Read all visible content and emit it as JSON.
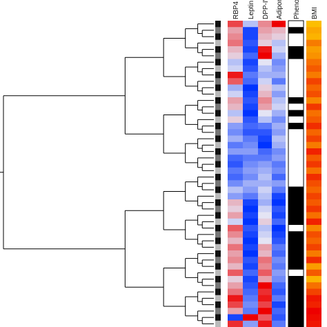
{
  "chart_data": {
    "type": "heatmap",
    "title": "",
    "columns": [
      "RBP4",
      "Leptin",
      "DPP-IV",
      "Adipon",
      "Phenot",
      "BMI"
    ],
    "dendrogram": "hierarchical clustering tree of samples (rows), drawn on the left",
    "row_count": 48,
    "heatmap_colors": {
      "low": "#0033ff",
      "mid": "#e4e4f4",
      "high": "#ee0000"
    },
    "phenotype_colors": {
      "0": "#ffffff",
      "1": "#000000"
    },
    "bmi_colors": {
      "low": "#ffe000",
      "high": "#ee0000"
    },
    "marker_colors": [
      "#111111",
      "#777777",
      "#bbbbbb"
    ],
    "rows": [
      {
        "RBP4": 0.7,
        "Leptin": -0.2,
        "DPP-IV": 0.4,
        "Adipon": 1.0,
        "Phenot": 0,
        "BMI": 0.15,
        "marker": 0
      },
      {
        "RBP4": 0.3,
        "Leptin": -0.9,
        "DPP-IV": 0.3,
        "Adipon": 0.2,
        "Phenot": 1,
        "BMI": 0.25,
        "marker": 1
      },
      {
        "RBP4": 0.4,
        "Leptin": -0.9,
        "DPP-IV": 0.2,
        "Adipon": 0.1,
        "Phenot": 0,
        "BMI": 0.2,
        "marker": 0
      },
      {
        "RBP4": 0.5,
        "Leptin": -0.8,
        "DPP-IV": 0.1,
        "Adipon": -0.2,
        "Phenot": 0,
        "BMI": 0.45,
        "marker": 2
      },
      {
        "RBP4": 0.2,
        "Leptin": -0.9,
        "DPP-IV": 0.9,
        "Adipon": -0.1,
        "Phenot": 1,
        "BMI": 0.3,
        "marker": 0
      },
      {
        "RBP4": 0.1,
        "Leptin": -0.7,
        "DPP-IV": 1.0,
        "Adipon": -0.3,
        "Phenot": 1,
        "BMI": 0.35,
        "marker": 1
      },
      {
        "RBP4": -0.2,
        "Leptin": -0.9,
        "DPP-IV": 0.0,
        "Adipon": -0.5,
        "Phenot": 0,
        "BMI": 0.5,
        "marker": 0
      },
      {
        "RBP4": -0.1,
        "Leptin": -0.8,
        "DPP-IV": -0.2,
        "Adipon": -0.4,
        "Phenot": 0,
        "BMI": 0.6,
        "marker": 2
      },
      {
        "RBP4": 0.9,
        "Leptin": -0.6,
        "DPP-IV": -0.3,
        "Adipon": -0.3,
        "Phenot": 0,
        "BMI": 0.45,
        "marker": 0
      },
      {
        "RBP4": 0.6,
        "Leptin": -0.7,
        "DPP-IV": -0.1,
        "Adipon": -0.6,
        "Phenot": 0,
        "BMI": 0.7,
        "marker": 1
      },
      {
        "RBP4": -0.3,
        "Leptin": -1.0,
        "DPP-IV": 0.1,
        "Adipon": -0.2,
        "Phenot": 0,
        "BMI": 0.55,
        "marker": 0
      },
      {
        "RBP4": -0.1,
        "Leptin": -0.9,
        "DPP-IV": 0.2,
        "Adipon": -0.4,
        "Phenot": 0,
        "BMI": 0.65,
        "marker": 2
      },
      {
        "RBP4": 0.3,
        "Leptin": -0.8,
        "DPP-IV": 0.4,
        "Adipon": -0.2,
        "Phenot": 1,
        "BMI": 0.4,
        "marker": 0
      },
      {
        "RBP4": 0.2,
        "Leptin": -0.9,
        "DPP-IV": 0.3,
        "Adipon": -0.1,
        "Phenot": 0,
        "BMI": 0.75,
        "marker": 1
      },
      {
        "RBP4": -0.2,
        "Leptin": -1.0,
        "DPP-IV": 0.0,
        "Adipon": -0.3,
        "Phenot": 1,
        "BMI": 0.5,
        "marker": 0
      },
      {
        "RBP4": 0.1,
        "Leptin": -0.8,
        "DPP-IV": -0.2,
        "Adipon": -0.5,
        "Phenot": 0,
        "BMI": 0.6,
        "marker": 2
      },
      {
        "RBP4": -0.4,
        "Leptin": -0.7,
        "DPP-IV": -0.6,
        "Adipon": -0.3,
        "Phenot": 1,
        "BMI": 0.8,
        "marker": 0
      },
      {
        "RBP4": -0.5,
        "Leptin": -0.8,
        "DPP-IV": -0.8,
        "Adipon": -0.4,
        "Phenot": 0,
        "BMI": 0.55,
        "marker": 1
      },
      {
        "RBP4": -0.3,
        "Leptin": -0.6,
        "DPP-IV": -0.9,
        "Adipon": -0.2,
        "Phenot": 0,
        "BMI": 0.7,
        "marker": 0
      },
      {
        "RBP4": -0.6,
        "Leptin": -0.5,
        "DPP-IV": -1.0,
        "Adipon": -0.3,
        "Phenot": 0,
        "BMI": 0.45,
        "marker": 2
      },
      {
        "RBP4": -0.4,
        "Leptin": -0.4,
        "DPP-IV": -0.7,
        "Adipon": -0.5,
        "Phenot": 0,
        "BMI": 0.85,
        "marker": 0
      },
      {
        "RBP4": -0.7,
        "Leptin": -0.6,
        "DPP-IV": -0.6,
        "Adipon": -0.4,
        "Phenot": 0,
        "BMI": 0.6,
        "marker": 1
      },
      {
        "RBP4": -0.8,
        "Leptin": -0.5,
        "DPP-IV": -0.4,
        "Adipon": -0.6,
        "Phenot": 0,
        "BMI": 0.75,
        "marker": 0
      },
      {
        "RBP4": -0.6,
        "Leptin": -0.4,
        "DPP-IV": -0.3,
        "Adipon": -0.5,
        "Phenot": 0,
        "BMI": 0.5,
        "marker": 2
      },
      {
        "RBP4": -0.7,
        "Leptin": -0.5,
        "DPP-IV": -0.2,
        "Adipon": -0.7,
        "Phenot": 0,
        "BMI": 0.8,
        "marker": 0
      },
      {
        "RBP4": -0.5,
        "Leptin": -0.3,
        "DPP-IV": -0.3,
        "Adipon": -0.4,
        "Phenot": 0,
        "BMI": 0.65,
        "marker": 1
      },
      {
        "RBP4": -0.2,
        "Leptin": -0.4,
        "DPP-IV": -0.1,
        "Adipon": -0.6,
        "Phenot": 1,
        "BMI": 0.55,
        "marker": 0
      },
      {
        "RBP4": -0.4,
        "Leptin": -0.6,
        "DPP-IV": -0.2,
        "Adipon": -0.9,
        "Phenot": 1,
        "BMI": 0.7,
        "marker": 2
      },
      {
        "RBP4": 0.2,
        "Leptin": -0.9,
        "DPP-IV": -0.3,
        "Adipon": -1.0,
        "Phenot": 1,
        "BMI": 0.6,
        "marker": 0
      },
      {
        "RBP4": 0.1,
        "Leptin": -1.0,
        "DPP-IV": -0.1,
        "Adipon": -0.8,
        "Phenot": 1,
        "BMI": 0.75,
        "marker": 1
      },
      {
        "RBP4": 0.3,
        "Leptin": -0.9,
        "DPP-IV": 0.0,
        "Adipon": -0.9,
        "Phenot": 1,
        "BMI": 0.5,
        "marker": 0
      },
      {
        "RBP4": -0.1,
        "Leptin": -1.0,
        "DPP-IV": 0.1,
        "Adipon": -0.7,
        "Phenot": 1,
        "BMI": 0.85,
        "marker": 2
      },
      {
        "RBP4": 0.6,
        "Leptin": -0.8,
        "DPP-IV": -0.2,
        "Adipon": -1.0,
        "Phenot": 0,
        "BMI": 0.4,
        "marker": 0
      },
      {
        "RBP4": 0.4,
        "Leptin": -0.9,
        "DPP-IV": -0.1,
        "Adipon": -0.9,
        "Phenot": 1,
        "BMI": 0.65,
        "marker": 1
      },
      {
        "RBP4": 0.2,
        "Leptin": -1.0,
        "DPP-IV": 0.0,
        "Adipon": -0.8,
        "Phenot": 1,
        "BMI": 0.55,
        "marker": 0
      },
      {
        "RBP4": 0.5,
        "Leptin": -0.9,
        "DPP-IV": 0.3,
        "Adipon": -0.6,
        "Phenot": 1,
        "BMI": 0.7,
        "marker": 2
      },
      {
        "RBP4": 0.3,
        "Leptin": -1.0,
        "DPP-IV": 0.2,
        "Adipon": -0.7,
        "Phenot": 1,
        "BMI": 0.45,
        "marker": 0
      },
      {
        "RBP4": 0.4,
        "Leptin": -0.8,
        "DPP-IV": 0.5,
        "Adipon": -0.5,
        "Phenot": 1,
        "BMI": 0.8,
        "marker": 1
      },
      {
        "RBP4": 0.2,
        "Leptin": -0.9,
        "DPP-IV": 0.4,
        "Adipon": -0.6,
        "Phenot": 1,
        "BMI": 0.3,
        "marker": 0
      },
      {
        "RBP4": 0.6,
        "Leptin": -0.7,
        "DPP-IV": 0.6,
        "Adipon": -0.4,
        "Phenot": 0,
        "BMI": 0.6,
        "marker": 2
      },
      {
        "RBP4": 0.1,
        "Leptin": -0.9,
        "DPP-IV": 0.3,
        "Adipon": -0.5,
        "Phenot": 1,
        "BMI": 0.2,
        "marker": 0
      },
      {
        "RBP4": 0.3,
        "Leptin": -0.8,
        "DPP-IV": 1.0,
        "Adipon": -0.7,
        "Phenot": 1,
        "BMI": 0.5,
        "marker": 1
      },
      {
        "RBP4": 0.5,
        "Leptin": -0.7,
        "DPP-IV": 0.8,
        "Adipon": -0.8,
        "Phenot": 1,
        "BMI": 0.7,
        "marker": 0
      },
      {
        "RBP4": 0.9,
        "Leptin": -0.6,
        "DPP-IV": 0.9,
        "Adipon": -0.6,
        "Phenot": 1,
        "BMI": 0.9,
        "marker": 2
      },
      {
        "RBP4": 0.7,
        "Leptin": -0.5,
        "DPP-IV": 0.7,
        "Adipon": -0.9,
        "Phenot": 1,
        "BMI": 0.85,
        "marker": 0
      },
      {
        "RBP4": 0.3,
        "Leptin": -0.6,
        "DPP-IV": 1.0,
        "Adipon": -0.7,
        "Phenot": 1,
        "BMI": 1.0,
        "marker": 1
      },
      {
        "RBP4": -0.9,
        "Leptin": 1.0,
        "DPP-IV": 0.6,
        "Adipon": -0.8,
        "Phenot": 1,
        "BMI": 0.95,
        "marker": 0
      },
      {
        "RBP4": 0.8,
        "Leptin": -0.4,
        "DPP-IV": 0.9,
        "Adipon": -0.6,
        "Phenot": 1,
        "BMI": 0.9,
        "marker": 2
      }
    ]
  }
}
